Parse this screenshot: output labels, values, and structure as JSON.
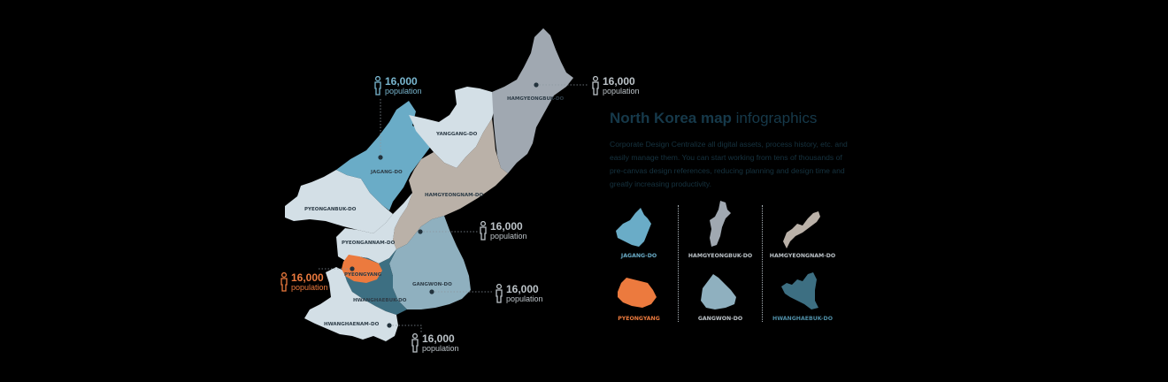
{
  "title": {
    "bold": "North Korea map",
    "light": "infographics"
  },
  "description": "Corporate Design Centralize all digital assets, process history, etc. and easily manage them. You can start working from tens of thousands of pre-canvas design references, reducing planning and design time and greatly increasing productivity.",
  "colors": {
    "background": "#000000",
    "title": "#16394a",
    "light_region": "#d3dfe6",
    "blue": "#6aacc7",
    "grey": "#a0a8b1",
    "tan": "#bab1a8",
    "orange": "#ec7a3e",
    "teal": "#3d6f82",
    "mid_teal": "#8fb0bf",
    "label": "#2e3d48"
  },
  "regions": {
    "pyeonganbuk": "PYEONGANBUK-DO",
    "jagang": "JAGANG-DO",
    "yanggang": "YANGGANG-DO",
    "hamgyeongbuk": "HAMGYEONGBUK-DO",
    "hamgyeongnam": "HAMGYEONGNAM-DO",
    "pyeongannam": "PYEONGANNAM-DO",
    "pyeongyang": "PYEONGYANG",
    "gangwon": "GANGWON-DO",
    "hwanghaebuk": "HWANGHAEBUK-DO",
    "hwanghaenam": "HWANGHAENAM-DO"
  },
  "callouts": {
    "jagang": {
      "value": "16,000",
      "unit": "population"
    },
    "hamgyeongbuk": {
      "value": "16,000",
      "unit": "population"
    },
    "hamgyeongnam": {
      "value": "16,000",
      "unit": "population"
    },
    "pyeongyang": {
      "value": "16,000",
      "unit": "population"
    },
    "gangwon": {
      "value": "16,000",
      "unit": "population"
    },
    "hwanghaenam": {
      "value": "16,000",
      "unit": "population"
    }
  },
  "thumbnails": [
    {
      "label": "JAGANG-DO",
      "color": "#6aacc7",
      "label_color": "#6aacc7"
    },
    {
      "label": "HAMGYEONGBUK-DO",
      "color": "#a0a8b1",
      "label_color": "#bcc3c8"
    },
    {
      "label": "HAMGYEONGNAM-DO",
      "color": "#bab1a8",
      "label_color": "#bcc3c8"
    },
    {
      "label": "PYEONGYANG",
      "color": "#ec7a3e",
      "label_color": "#ec7a3e"
    },
    {
      "label": "GANGWON-DO",
      "color": "#8fb0bf",
      "label_color": "#bcc3c8"
    },
    {
      "label": "HWANGHAEBUK-DO",
      "color": "#3d6f82",
      "label_color": "#4f8ea6"
    }
  ]
}
